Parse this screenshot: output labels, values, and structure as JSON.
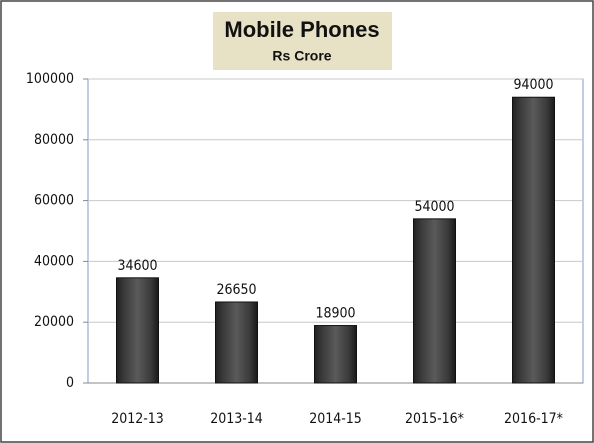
{
  "chart_data": {
    "type": "bar",
    "title": "Mobile Phones",
    "subtitle": "Rs Crore",
    "categories": [
      "2012-13",
      "2013-14",
      "2014-15",
      "2015-16*",
      "2016-17*"
    ],
    "values": [
      34600,
      26650,
      18900,
      54000,
      94000
    ],
    "color": "#4a4a4a",
    "ylim": [
      0,
      100000
    ],
    "yticks": [
      0,
      20000,
      40000,
      60000,
      80000,
      100000
    ],
    "grid": true
  }
}
